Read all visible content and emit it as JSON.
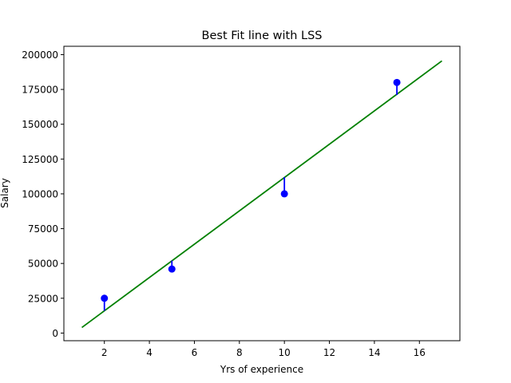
{
  "chart_data": {
    "type": "scatter",
    "title": "Best Fit line with LSS",
    "xlabel": "Yrs of experience",
    "ylabel": "Salary",
    "xlim": [
      0.2,
      17.8
    ],
    "ylim": [
      -5500,
      206000
    ],
    "x_ticks": [
      2,
      4,
      6,
      8,
      10,
      12,
      14,
      16
    ],
    "y_ticks": [
      0,
      25000,
      50000,
      75000,
      100000,
      125000,
      150000,
      175000,
      200000
    ],
    "x_tick_labels": [
      "2",
      "4",
      "6",
      "8",
      "10",
      "12",
      "14",
      "16"
    ],
    "y_tick_labels": [
      "0",
      "25000",
      "50000",
      "75000",
      "100000",
      "125000",
      "150000",
      "175000",
      "200000"
    ],
    "points": [
      {
        "x": 2,
        "y": 25000
      },
      {
        "x": 5,
        "y": 46000
      },
      {
        "x": 10,
        "y": 100000
      },
      {
        "x": 15,
        "y": 180000
      }
    ],
    "fit_line": {
      "x": [
        1,
        17
      ],
      "y": [
        4000,
        195500
      ]
    },
    "residuals": [
      {
        "x": 2,
        "y_point": 25000,
        "y_fit": 16000
      },
      {
        "x": 5,
        "y_point": 46000,
        "y_fit": 52000
      },
      {
        "x": 10,
        "y_point": 100000,
        "y_fit": 112000
      },
      {
        "x": 15,
        "y_point": 180000,
        "y_fit": 171000
      }
    ],
    "grid": false,
    "colors": {
      "points": "#0000ff",
      "residuals": "#0000ff",
      "fit_line": "#008000"
    }
  }
}
